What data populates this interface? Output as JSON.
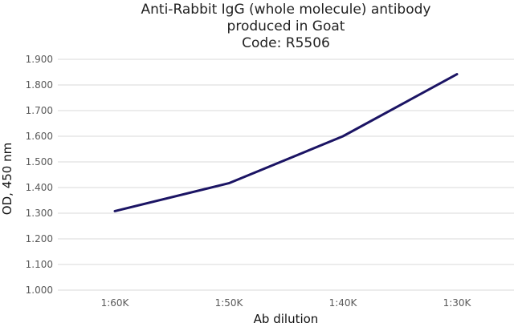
{
  "chart_data": {
    "type": "line",
    "title": [
      "Anti-Rabbit IgG (whole molecule) antibody",
      "produced in Goat",
      "Code: R5506"
    ],
    "xlabel": "Ab dilution",
    "ylabel": "OD, 450 nm",
    "categories": [
      "1:60K",
      "1:50K",
      "1:40K",
      "1:30K"
    ],
    "series": [
      {
        "values": [
          1.308,
          1.417,
          1.6,
          1.842
        ],
        "color": "#1b1464"
      }
    ],
    "ylim": [
      1.0,
      1.9
    ],
    "yticks": [
      "1.000",
      "1.100",
      "1.200",
      "1.300",
      "1.400",
      "1.500",
      "1.600",
      "1.700",
      "1.800",
      "1.900"
    ],
    "grid": true,
    "gridColor": "#d9d9d9",
    "legend": "none"
  }
}
